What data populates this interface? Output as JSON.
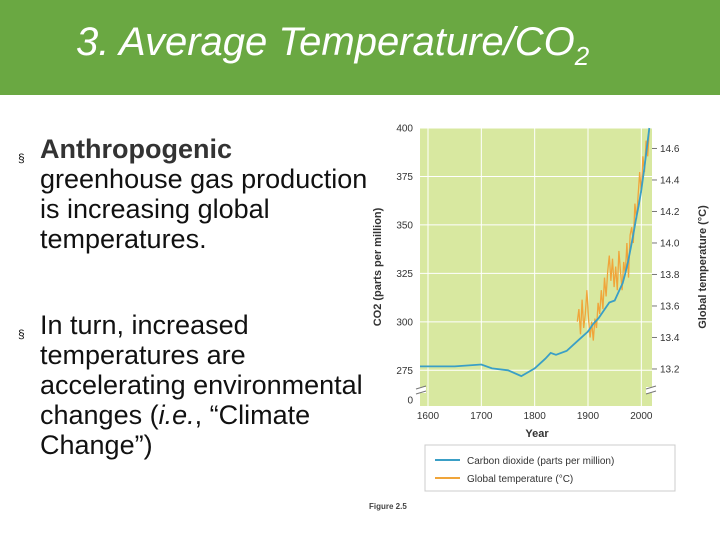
{
  "slide": {
    "title_main": "3. Average Temperature/CO",
    "title_sub": "2",
    "bullet_marker": "§",
    "bullet1_head": "Anthropogenic",
    "bullet1_rest": "greenhouse gas production is increasing global temperatures.",
    "bullet2_a": "In turn, increased temperatures are accelerating environmental changes (",
    "bullet2_ie": "i.e.",
    "bullet2_b": ", “Climate Change”)"
  },
  "chart_data": {
    "type": "line",
    "xlabel": "Year",
    "ylabel_left": "CO2 (parts per million)",
    "ylabel_right": "Global temperature (°C)",
    "xlim": [
      1585,
      2020
    ],
    "xticks": [
      1600,
      1700,
      1800,
      1900,
      2000
    ],
    "ylim_left": [
      270,
      400
    ],
    "yticks_left": [
      275,
      300,
      325,
      350,
      375,
      400
    ],
    "ytick_left_zero": "0",
    "ylim_right": [
      13.13,
      14.73
    ],
    "yticks_right": [
      13.2,
      13.4,
      13.6,
      13.8,
      14.0,
      14.2,
      14.4,
      14.6
    ],
    "figure_label": "Figure 2.5",
    "colors": {
      "co2": "#3a9fc6",
      "temperature": "#f0a53a",
      "plot_bg": "#d8e8a0",
      "grid": "#ffffff"
    },
    "series": [
      {
        "name": "Carbon dioxide (parts per million)",
        "axis": "left",
        "x": [
          1585,
          1650,
          1700,
          1720,
          1750,
          1775,
          1800,
          1820,
          1830,
          1840,
          1860,
          1880,
          1900,
          1910,
          1920,
          1930,
          1940,
          1950,
          1960,
          1965,
          1970,
          1975,
          1980,
          1985,
          1990,
          1995,
          2000,
          2005,
          2010,
          2015
        ],
        "y": [
          277,
          277,
          278,
          276,
          275,
          272,
          276,
          281,
          284,
          283,
          285,
          290,
          295,
          299,
          302,
          306,
          310,
          311,
          317,
          320,
          325,
          331,
          338,
          345,
          353,
          360,
          368,
          378,
          389,
          400
        ]
      },
      {
        "name": "Global temperature (°C)",
        "axis": "right",
        "x": [
          1880,
          1883,
          1886,
          1889,
          1892,
          1895,
          1898,
          1901,
          1904,
          1907,
          1910,
          1913,
          1916,
          1919,
          1922,
          1925,
          1928,
          1931,
          1934,
          1937,
          1940,
          1943,
          1946,
          1949,
          1952,
          1955,
          1958,
          1961,
          1964,
          1967,
          1970,
          1973,
          1976,
          1979,
          1982,
          1985,
          1988,
          1991,
          1994,
          1997,
          2000,
          2003,
          2006,
          2009,
          2012,
          2015
        ],
        "y": [
          13.5,
          13.58,
          13.42,
          13.64,
          13.46,
          13.55,
          13.7,
          13.52,
          13.4,
          13.5,
          13.38,
          13.52,
          13.46,
          13.62,
          13.55,
          13.7,
          13.58,
          13.78,
          13.66,
          13.82,
          13.92,
          13.76,
          13.9,
          13.72,
          13.85,
          13.7,
          13.95,
          13.82,
          13.7,
          13.88,
          13.8,
          14.0,
          13.78,
          14.05,
          14.1,
          14.0,
          14.25,
          14.15,
          14.3,
          14.45,
          14.32,
          14.55,
          14.45,
          14.65,
          14.55,
          14.72
        ]
      }
    ]
  }
}
